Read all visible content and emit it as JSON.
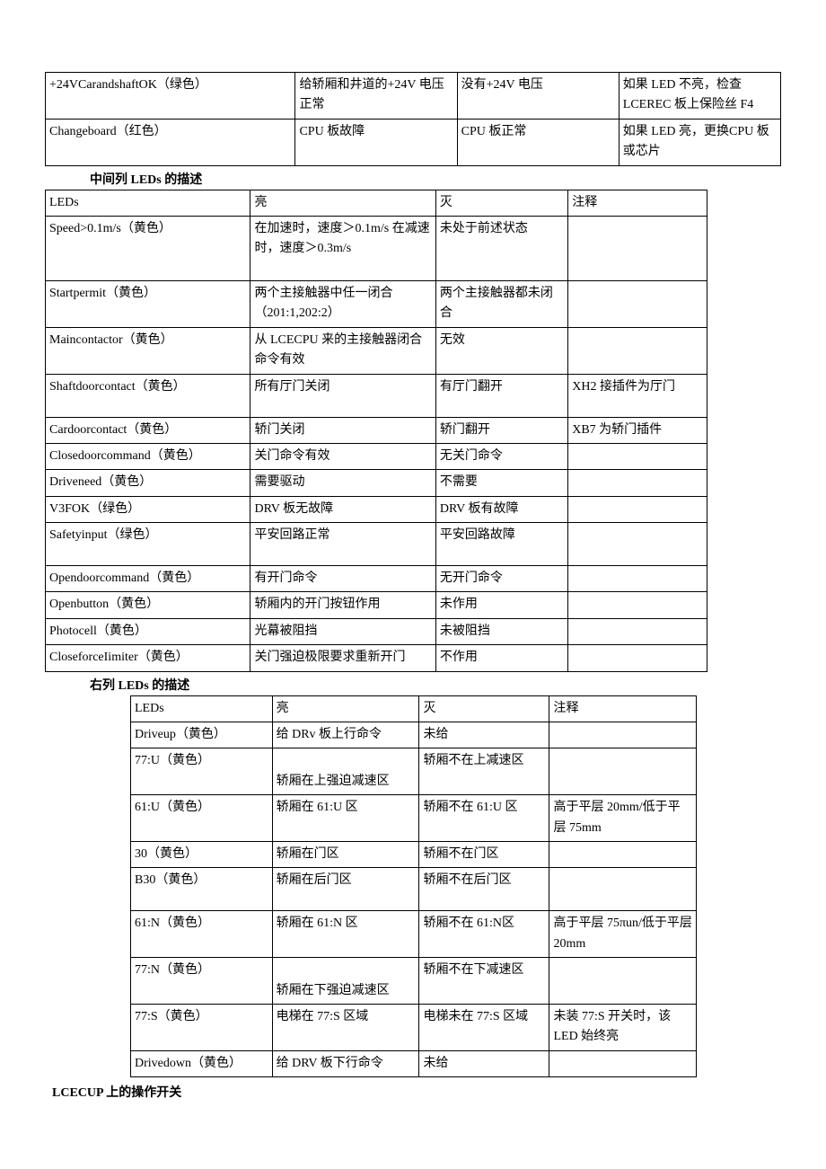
{
  "page": {
    "background_color": "#ffffff",
    "text_color": "#000000",
    "border_color": "#000000",
    "font_family": "SimSun",
    "font_size_pt": 11
  },
  "table1": {
    "rows": [
      {
        "c1": "+24VCarandshaftOK（绿色）",
        "c2": "给轿厢和井道的+24V 电压正常",
        "c3": "没有+24V 电压",
        "c4": "如果 LED 不亮，检查 LCEREC 板上保险丝 F4"
      },
      {
        "c1": "Changeboard（红色）",
        "c2": "CPU 板故障",
        "c3": "CPU 板正常",
        "c4": "如果 LED 亮，更换CPU 板或芯片"
      }
    ]
  },
  "heading1": "中间列 LEDs 的描述",
  "table2": {
    "header": {
      "c1": "LEDs",
      "c2": "亮",
      "c3": "灭",
      "c4": "注释"
    },
    "rows": [
      {
        "c1": "Speed>0.1m/s（黄色）",
        "c2": "在加速时，速度＞0.1m/s 在减速时，速度＞0.3m/s",
        "c3": "未处于前述状态",
        "c4": ""
      },
      {
        "c1": "Startpermit（黄色）",
        "c2": "两个主接触器中任一闭合（201:1,202:2）",
        "c3": "两个主接触器都未闭合",
        "c4": ""
      },
      {
        "c1": "Maincontactor（黄色）",
        "c2": "从 LCECPU 来的主接触器闭合命令有效",
        "c3": "无效",
        "c4": ""
      },
      {
        "c1": "Shaftdoorcontact（黄色）",
        "c2": "所有厅门关闭",
        "c3": "有厅门翻开",
        "c4": "XH2 接插件为厅门"
      },
      {
        "c1": "Cardoorcontact（黄色）",
        "c2": "轿门关闭",
        "c3": "轿门翻开",
        "c4": "XB7 为轿门插件"
      },
      {
        "c1": "Closedoorcommand（黄色）",
        "c2": "关门命令有效",
        "c3": "无关门命令",
        "c4": ""
      },
      {
        "c1": "Driveneed（黄色）",
        "c2": "需要驱动",
        "c3": "不需要",
        "c4": ""
      },
      {
        "c1": "V3FOK（绿色）",
        "c2": "DRV 板无故障",
        "c3": "DRV 板有故障",
        "c4": ""
      },
      {
        "c1": "Safetyinput（绿色）",
        "c2": "平安回路正常",
        "c3": "平安回路故障",
        "c4": ""
      },
      {
        "c1": "Opendoorcommand（黄色）",
        "c2": "有开门命令",
        "c3": "无开门命令",
        "c4": ""
      },
      {
        "c1": "Openbutton（黄色）",
        "c2": "轿厢内的开门按钮作用",
        "c3": "未作用",
        "c4": ""
      },
      {
        "c1": "Photocell（黄色）",
        "c2": "光幕被阻挡",
        "c3": "未被阻挡",
        "c4": ""
      },
      {
        "c1": "CloseforceIimiter（黄色）",
        "c2": "关门强迫极限要求重新开门",
        "c3": "不作用",
        "c4": ""
      }
    ]
  },
  "heading2": "右列 LEDs 的描述",
  "table3": {
    "header": {
      "c1": "LEDs",
      "c2": "亮",
      "c3": "灭",
      "c4": "注释"
    },
    "rows": [
      {
        "c1": "Driveup（黄色）",
        "c2": "给 DRv 板上行命令",
        "c3": "未给",
        "c4": ""
      },
      {
        "c1": "77:U（黄色）",
        "c2": "轿厢在上强迫减速区",
        "c3": "轿厢不在上减速区",
        "c4": ""
      },
      {
        "c1": "61:U（黄色）",
        "c2": "轿厢在 61:U 区",
        "c3": "轿厢不在 61:U 区",
        "c4": "高于平层 20mm/低于平层 75mm"
      },
      {
        "c1": "30（黄色）",
        "c2": "轿厢在门区",
        "c3": "轿厢不在门区",
        "c4": ""
      },
      {
        "c1": "B30（黄色）",
        "c2": "轿厢在后门区",
        "c3": "轿厢不在后门区",
        "c4": ""
      },
      {
        "c1": "61:N（黄色）",
        "c2": "轿厢在 61:N 区",
        "c3": "轿厢不在 61:N区",
        "c4": "高于平层 75πun/低于平层 20mm"
      },
      {
        "c1": "77:N（黄色）",
        "c2": "轿厢在下强迫减速区",
        "c3": "轿厢不在下减速区",
        "c4": ""
      },
      {
        "c1": "77:S（黄色）",
        "c2": "电梯在 77:S 区域",
        "c3": "电梯未在 77:S 区域",
        "c4": "未装 77:S 开关时，该 LED 始终亮"
      },
      {
        "c1": "Drivedown（黄色）",
        "c2": "给 DRV 板下行命令",
        "c3": "未给",
        "c4": ""
      }
    ]
  },
  "heading3": "LCECUP 上的操作开关"
}
